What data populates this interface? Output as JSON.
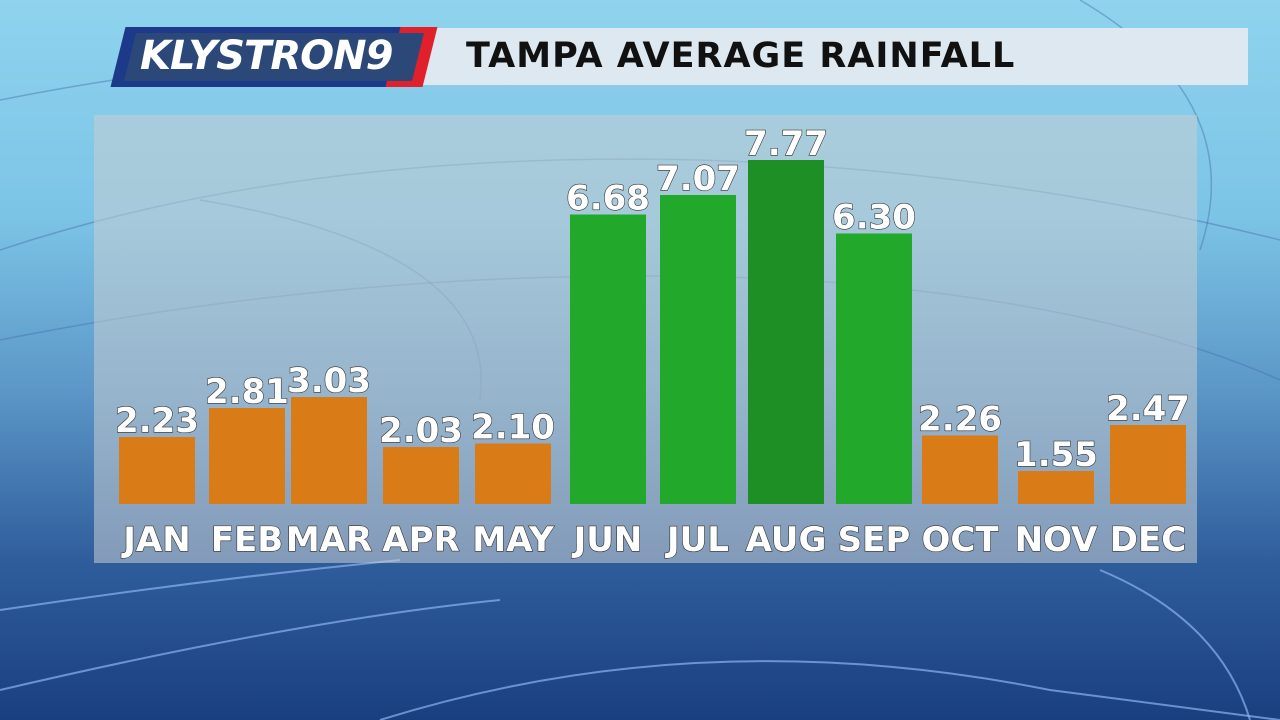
{
  "header": {
    "logo_text": "KLYSTRON9",
    "title": "TAMPA AVERAGE RAINFALL"
  },
  "colors": {
    "dry": "#d97b17",
    "wet": "#22a82a",
    "max": "#1e8f24"
  },
  "chart_data": {
    "type": "bar",
    "title": "TAMPA AVERAGE RAINFALL",
    "categories": [
      "JAN",
      "FEB",
      "MAR",
      "APR",
      "MAY",
      "JUN",
      "JUL",
      "AUG",
      "SEP",
      "OCT",
      "NOV",
      "DEC"
    ],
    "values": [
      2.23,
      2.81,
      3.03,
      2.03,
      2.1,
      6.68,
      7.07,
      7.77,
      6.3,
      2.26,
      1.55,
      2.47
    ],
    "value_labels": [
      "2.23",
      "2.81",
      "3.03",
      "2.03",
      "2.10",
      "6.68",
      "7.07",
      "7.77",
      "6.30",
      "2.26",
      "1.55",
      "2.47"
    ],
    "bar_colors": [
      "#d97b17",
      "#d97b17",
      "#d97b17",
      "#d97b17",
      "#d97b17",
      "#22a82a",
      "#22a82a",
      "#1e8f24",
      "#22a82a",
      "#d97b17",
      "#d97b17",
      "#d97b17"
    ],
    "ylim": [
      0.89,
      8.67
    ],
    "grid": false,
    "legend": "none"
  }
}
